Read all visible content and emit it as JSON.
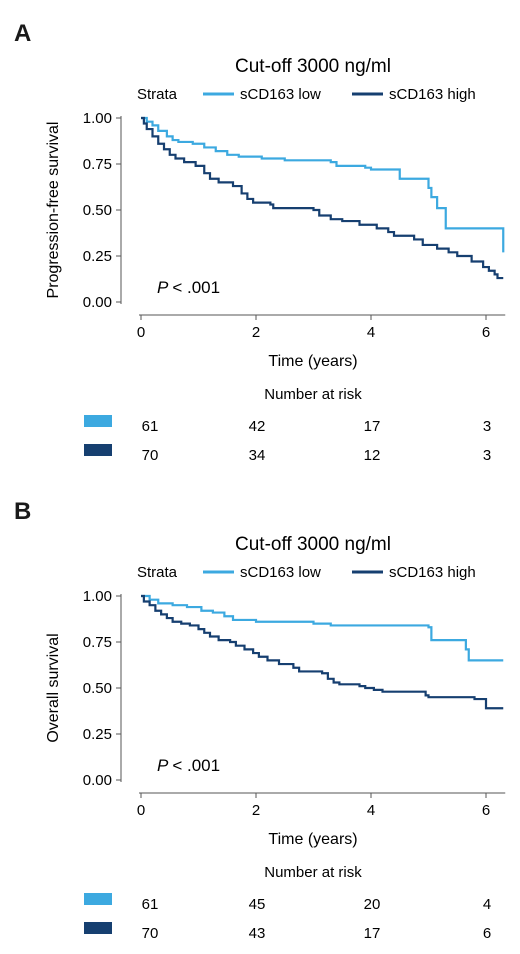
{
  "chart_data": [
    {
      "panel": "A",
      "type": "line",
      "title": "Cut-off 3000 ng/ml",
      "legend_title": "Strata",
      "xlabel": "Time (years)",
      "ylabel": "Progression-free survival",
      "xlim": [
        0,
        6.3
      ],
      "ylim": [
        0,
        1
      ],
      "xticks": [
        "0",
        "2",
        "4",
        "6"
      ],
      "yticks": [
        "0.00",
        "0.25",
        "0.50",
        "0.75",
        "1.00"
      ],
      "pvalue": {
        "symbol": "P",
        "text": "< .001"
      },
      "risk_table": {
        "title": "Number at risk",
        "times": [
          0,
          2,
          4,
          6
        ],
        "rows": [
          {
            "series": "sCD163 low",
            "values": [
              "61",
              "42",
              "17",
              "3"
            ]
          },
          {
            "series": "sCD163 high",
            "values": [
              "70",
              "34",
              "12",
              "3"
            ]
          }
        ]
      },
      "series": [
        {
          "name": "sCD163 low",
          "color": "#3ca9e0",
          "steps": [
            [
              0,
              1.0
            ],
            [
              0.1,
              0.98
            ],
            [
              0.2,
              0.96
            ],
            [
              0.3,
              0.93
            ],
            [
              0.45,
              0.9
            ],
            [
              0.55,
              0.88
            ],
            [
              0.65,
              0.87
            ],
            [
              0.9,
              0.86
            ],
            [
              1.1,
              0.84
            ],
            [
              1.3,
              0.82
            ],
            [
              1.5,
              0.8
            ],
            [
              1.7,
              0.79
            ],
            [
              2.1,
              0.78
            ],
            [
              2.5,
              0.77
            ],
            [
              3.3,
              0.76
            ],
            [
              3.4,
              0.74
            ],
            [
              3.9,
              0.73
            ],
            [
              4.0,
              0.72
            ],
            [
              4.5,
              0.67
            ],
            [
              5.0,
              0.62
            ],
            [
              5.05,
              0.57
            ],
            [
              5.15,
              0.51
            ],
            [
              5.3,
              0.4
            ],
            [
              6.25,
              0.4
            ],
            [
              6.3,
              0.27
            ]
          ]
        },
        {
          "name": "sCD163 high",
          "color": "#163f70",
          "steps": [
            [
              0,
              1.0
            ],
            [
              0.05,
              0.97
            ],
            [
              0.1,
              0.94
            ],
            [
              0.2,
              0.9
            ],
            [
              0.3,
              0.86
            ],
            [
              0.4,
              0.83
            ],
            [
              0.5,
              0.8
            ],
            [
              0.6,
              0.78
            ],
            [
              0.75,
              0.76
            ],
            [
              0.95,
              0.74
            ],
            [
              1.1,
              0.7
            ],
            [
              1.2,
              0.67
            ],
            [
              1.35,
              0.65
            ],
            [
              1.6,
              0.63
            ],
            [
              1.75,
              0.59
            ],
            [
              1.85,
              0.56
            ],
            [
              1.95,
              0.54
            ],
            [
              2.25,
              0.53
            ],
            [
              2.3,
              0.51
            ],
            [
              3.0,
              0.5
            ],
            [
              3.1,
              0.47
            ],
            [
              3.3,
              0.45
            ],
            [
              3.5,
              0.44
            ],
            [
              3.8,
              0.42
            ],
            [
              4.1,
              0.4
            ],
            [
              4.3,
              0.38
            ],
            [
              4.4,
              0.36
            ],
            [
              4.75,
              0.34
            ],
            [
              4.9,
              0.31
            ],
            [
              5.15,
              0.29
            ],
            [
              5.35,
              0.27
            ],
            [
              5.5,
              0.25
            ],
            [
              5.75,
              0.22
            ],
            [
              5.95,
              0.19
            ],
            [
              6.05,
              0.17
            ],
            [
              6.15,
              0.15
            ],
            [
              6.2,
              0.13
            ],
            [
              6.3,
              0.13
            ]
          ]
        }
      ]
    },
    {
      "panel": "B",
      "type": "line",
      "title": "Cut-off 3000 ng/ml",
      "legend_title": "Strata",
      "xlabel": "Time (years)",
      "ylabel": "Overall survival",
      "xlim": [
        0,
        6.3
      ],
      "ylim": [
        0,
        1
      ],
      "xticks": [
        "0",
        "2",
        "4",
        "6"
      ],
      "yticks": [
        "0.00",
        "0.25",
        "0.50",
        "0.75",
        "1.00"
      ],
      "pvalue": {
        "symbol": "P",
        "text": "< .001"
      },
      "risk_table": {
        "title": "Number at risk",
        "times": [
          0,
          2,
          4,
          6
        ],
        "rows": [
          {
            "series": "sCD163 low",
            "values": [
              "61",
              "45",
              "20",
              "4"
            ]
          },
          {
            "series": "sCD163 high",
            "values": [
              "70",
              "43",
              "17",
              "6"
            ]
          }
        ]
      },
      "series": [
        {
          "name": "sCD163 low",
          "color": "#3ca9e0",
          "steps": [
            [
              0,
              1.0
            ],
            [
              0.15,
              0.98
            ],
            [
              0.3,
              0.96
            ],
            [
              0.55,
              0.95
            ],
            [
              0.8,
              0.94
            ],
            [
              1.05,
              0.92
            ],
            [
              1.25,
              0.91
            ],
            [
              1.45,
              0.89
            ],
            [
              1.6,
              0.87
            ],
            [
              2.0,
              0.86
            ],
            [
              3.0,
              0.85
            ],
            [
              3.3,
              0.84
            ],
            [
              5.0,
              0.83
            ],
            [
              5.05,
              0.76
            ],
            [
              5.65,
              0.71
            ],
            [
              5.7,
              0.65
            ],
            [
              6.3,
              0.65
            ]
          ]
        },
        {
          "name": "sCD163 high",
          "color": "#163f70",
          "steps": [
            [
              0,
              1.0
            ],
            [
              0.05,
              0.97
            ],
            [
              0.15,
              0.95
            ],
            [
              0.25,
              0.92
            ],
            [
              0.35,
              0.9
            ],
            [
              0.45,
              0.88
            ],
            [
              0.55,
              0.86
            ],
            [
              0.7,
              0.85
            ],
            [
              0.85,
              0.84
            ],
            [
              1.0,
              0.82
            ],
            [
              1.1,
              0.8
            ],
            [
              1.2,
              0.78
            ],
            [
              1.35,
              0.76
            ],
            [
              1.55,
              0.75
            ],
            [
              1.65,
              0.73
            ],
            [
              1.8,
              0.71
            ],
            [
              1.95,
              0.69
            ],
            [
              2.05,
              0.67
            ],
            [
              2.2,
              0.65
            ],
            [
              2.4,
              0.63
            ],
            [
              2.65,
              0.61
            ],
            [
              2.75,
              0.59
            ],
            [
              3.15,
              0.58
            ],
            [
              3.25,
              0.55
            ],
            [
              3.35,
              0.53
            ],
            [
              3.45,
              0.52
            ],
            [
              3.8,
              0.51
            ],
            [
              3.9,
              0.5
            ],
            [
              4.05,
              0.49
            ],
            [
              4.2,
              0.48
            ],
            [
              4.95,
              0.46
            ],
            [
              5.0,
              0.45
            ],
            [
              5.8,
              0.44
            ],
            [
              6.0,
              0.39
            ],
            [
              6.3,
              0.39
            ]
          ]
        }
      ]
    }
  ]
}
